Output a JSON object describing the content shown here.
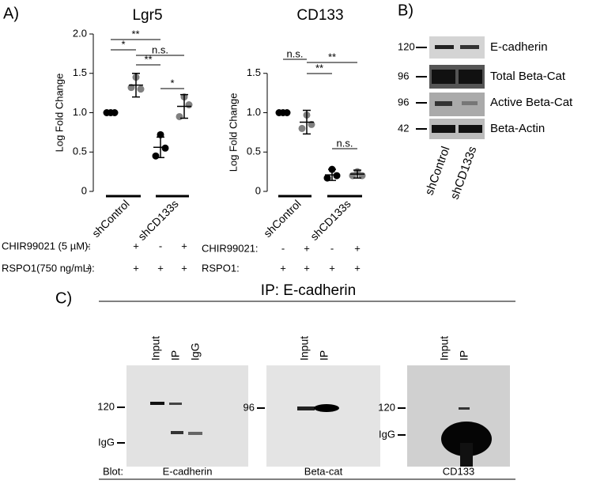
{
  "panels": {
    "a": "A)",
    "b": "B)",
    "c": "C)"
  },
  "chart_data": [
    {
      "type": "dotplot",
      "title": "Lgr5",
      "y_label": "Log Fold Change",
      "ylim": [
        0,
        2
      ],
      "yticks": [
        0,
        0.5,
        {
          "value": 1,
          "label": "1.0"
        },
        1.5,
        {
          "value": 2,
          "label": "2.0"
        }
      ],
      "groups": [
        {
          "color": "#000000",
          "values": [
            1,
            1,
            1
          ],
          "mean": 1,
          "sd": 0.01
        },
        {
          "color": "#808080",
          "values": [
            1.45,
            1.3,
            1.32
          ],
          "mean": 1.35,
          "sd": 0.15
        },
        {
          "color": "#000000",
          "values": [
            0.72,
            0.55,
            0.45
          ],
          "mean": 0.56,
          "sd": 0.13
        },
        {
          "color": "#808080",
          "values": [
            1.2,
            1.1,
            0.95
          ],
          "mean": 1.08,
          "sd": 0.15
        }
      ],
      "group_labels": [
        "shControl",
        "shCD133s"
      ],
      "significance": [
        "**",
        "*",
        "n.s.",
        "**",
        "*"
      ],
      "conditions": [
        {
          "name": "CHIR99021 (5 µM):",
          "values": [
            "-",
            "+",
            "-",
            "+"
          ]
        },
        {
          "name": "RSPO1(750 ng/mL):",
          "values": [
            "+",
            "+",
            "+",
            "+"
          ]
        }
      ]
    },
    {
      "type": "dotplot",
      "title": "CD133",
      "y_label": "Log Fold Change",
      "ylim": [
        0,
        1.5
      ],
      "yticks": [
        0,
        0.5,
        {
          "value": 1,
          "label": "1.0"
        },
        1.5
      ],
      "groups": [
        {
          "color": "#000000",
          "values": [
            1,
            1,
            1
          ],
          "mean": 1,
          "sd": 0.01
        },
        {
          "color": "#808080",
          "values": [
            0.97,
            0.85,
            0.8
          ],
          "mean": 0.88,
          "sd": 0.15
        },
        {
          "color": "#000000",
          "values": [
            0.28,
            0.2,
            0.17
          ],
          "mean": 0.21,
          "sd": 0.07
        },
        {
          "color": "#808080",
          "values": [
            0.25,
            0.2,
            0.2
          ],
          "mean": 0.22,
          "sd": 0.05
        }
      ],
      "group_labels": [
        "shControl",
        "shCD133s"
      ],
      "significance": [
        "n.s.",
        "**",
        "**",
        "n.s."
      ],
      "conditions": [
        {
          "name": "CHIR99021:",
          "values": [
            "-",
            "+",
            "-",
            "+"
          ]
        },
        {
          "name": "RSPO1:",
          "values": [
            "+",
            "+",
            "+",
            "+"
          ]
        }
      ]
    }
  ],
  "blot_b": {
    "markers": [
      "120",
      "96",
      "96",
      "42"
    ],
    "labels": [
      "E-cadherin",
      "Total Beta-Cat",
      "Active Beta-Cat",
      "Beta-Actin"
    ],
    "lanes": [
      "shControl",
      "shCD133s"
    ]
  },
  "ip": {
    "title": "IP: E-cadherin",
    "blot_label": "Blot:",
    "blots": [
      {
        "lanes": [
          "Input",
          "IP",
          "IgG"
        ],
        "markers": [
          "120",
          "IgG"
        ],
        "blot": "E-cadherin"
      },
      {
        "lanes": [
          "Input",
          "IP"
        ],
        "markers": [
          "96"
        ],
        "blot": "Beta-cat"
      },
      {
        "lanes": [
          "Input",
          "IP"
        ],
        "markers": [
          "120",
          "IgG"
        ],
        "blot": "CD133"
      }
    ]
  }
}
